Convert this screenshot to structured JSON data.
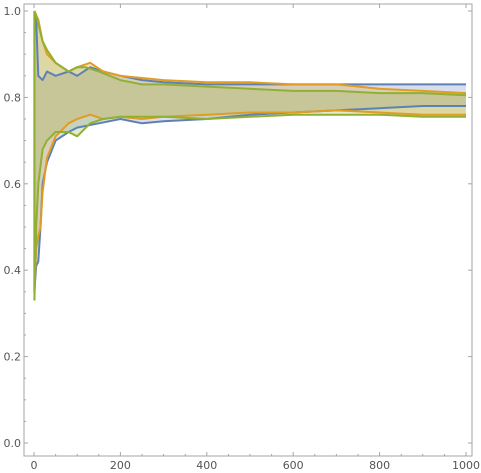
{
  "chart_data": {
    "type": "area",
    "x_ticks": [
      0,
      200,
      400,
      600,
      800,
      1000
    ],
    "y_ticks": [
      0.0,
      0.2,
      0.4,
      0.6,
      0.8,
      1.0
    ],
    "x_tick_labels": [
      "0",
      "200",
      "400",
      "600",
      "800",
      "1000"
    ],
    "y_tick_labels": [
      "0.0",
      "0.2",
      "0.4",
      "0.6",
      "0.8",
      "1.0"
    ],
    "xlim": [
      0,
      1000
    ],
    "ylim": [
      0,
      1.0
    ],
    "grid": false,
    "series": [
      {
        "color": "#5e81b5",
        "fill": "rgba(94,129,181,0.25)",
        "upper": [
          [
            1,
            1.0
          ],
          [
            5,
            0.98
          ],
          [
            10,
            0.85
          ],
          [
            20,
            0.84
          ],
          [
            30,
            0.86
          ],
          [
            50,
            0.85
          ],
          [
            80,
            0.86
          ],
          [
            100,
            0.85
          ],
          [
            130,
            0.87
          ],
          [
            160,
            0.86
          ],
          [
            200,
            0.85
          ],
          [
            250,
            0.84
          ],
          [
            300,
            0.835
          ],
          [
            400,
            0.83
          ],
          [
            500,
            0.83
          ],
          [
            600,
            0.83
          ],
          [
            700,
            0.83
          ],
          [
            800,
            0.83
          ],
          [
            900,
            0.83
          ],
          [
            1000,
            0.83
          ]
        ],
        "lower": [
          [
            1,
            0.35
          ],
          [
            5,
            0.41
          ],
          [
            10,
            0.42
          ],
          [
            15,
            0.5
          ],
          [
            20,
            0.6
          ],
          [
            30,
            0.65
          ],
          [
            50,
            0.7
          ],
          [
            80,
            0.72
          ],
          [
            100,
            0.73
          ],
          [
            150,
            0.74
          ],
          [
            200,
            0.75
          ],
          [
            250,
            0.74
          ],
          [
            300,
            0.745
          ],
          [
            400,
            0.75
          ],
          [
            500,
            0.76
          ],
          [
            600,
            0.765
          ],
          [
            700,
            0.77
          ],
          [
            800,
            0.775
          ],
          [
            900,
            0.78
          ],
          [
            1000,
            0.78
          ]
        ]
      },
      {
        "color": "#e19c24",
        "fill": "rgba(225,156,36,0.25)",
        "upper": [
          [
            1,
            1.0
          ],
          [
            5,
            0.99
          ],
          [
            10,
            0.98
          ],
          [
            20,
            0.93
          ],
          [
            30,
            0.9
          ],
          [
            50,
            0.88
          ],
          [
            80,
            0.86
          ],
          [
            100,
            0.87
          ],
          [
            130,
            0.88
          ],
          [
            160,
            0.86
          ],
          [
            200,
            0.85
          ],
          [
            250,
            0.845
          ],
          [
            300,
            0.84
          ],
          [
            400,
            0.835
          ],
          [
            500,
            0.835
          ],
          [
            600,
            0.83
          ],
          [
            700,
            0.83
          ],
          [
            800,
            0.82
          ],
          [
            900,
            0.815
          ],
          [
            1000,
            0.81
          ]
        ],
        "lower": [
          [
            1,
            0.35
          ],
          [
            5,
            0.45
          ],
          [
            10,
            0.48
          ],
          [
            15,
            0.5
          ],
          [
            20,
            0.58
          ],
          [
            30,
            0.66
          ],
          [
            50,
            0.71
          ],
          [
            80,
            0.74
          ],
          [
            100,
            0.75
          ],
          [
            130,
            0.76
          ],
          [
            160,
            0.75
          ],
          [
            200,
            0.755
          ],
          [
            250,
            0.75
          ],
          [
            300,
            0.755
          ],
          [
            400,
            0.76
          ],
          [
            500,
            0.765
          ],
          [
            600,
            0.765
          ],
          [
            700,
            0.77
          ],
          [
            800,
            0.765
          ],
          [
            900,
            0.76
          ],
          [
            1000,
            0.76
          ]
        ]
      },
      {
        "color": "#8fb032",
        "fill": "rgba(143,176,50,0.25)",
        "upper": [
          [
            1,
            1.0
          ],
          [
            5,
            0.99
          ],
          [
            10,
            0.97
          ],
          [
            20,
            0.93
          ],
          [
            30,
            0.91
          ],
          [
            50,
            0.88
          ],
          [
            80,
            0.86
          ],
          [
            100,
            0.87
          ],
          [
            120,
            0.87
          ],
          [
            150,
            0.86
          ],
          [
            200,
            0.84
          ],
          [
            250,
            0.83
          ],
          [
            300,
            0.83
          ],
          [
            400,
            0.825
          ],
          [
            500,
            0.82
          ],
          [
            600,
            0.815
          ],
          [
            700,
            0.815
          ],
          [
            800,
            0.81
          ],
          [
            900,
            0.81
          ],
          [
            1000,
            0.805
          ]
        ],
        "lower": [
          [
            1,
            0.33
          ],
          [
            5,
            0.5
          ],
          [
            10,
            0.6
          ],
          [
            20,
            0.68
          ],
          [
            30,
            0.7
          ],
          [
            50,
            0.72
          ],
          [
            80,
            0.72
          ],
          [
            100,
            0.71
          ],
          [
            130,
            0.74
          ],
          [
            160,
            0.75
          ],
          [
            200,
            0.755
          ],
          [
            250,
            0.755
          ],
          [
            300,
            0.755
          ],
          [
            400,
            0.75
          ],
          [
            500,
            0.755
          ],
          [
            600,
            0.76
          ],
          [
            700,
            0.76
          ],
          [
            800,
            0.76
          ],
          [
            900,
            0.755
          ],
          [
            1000,
            0.755
          ]
        ]
      }
    ]
  }
}
